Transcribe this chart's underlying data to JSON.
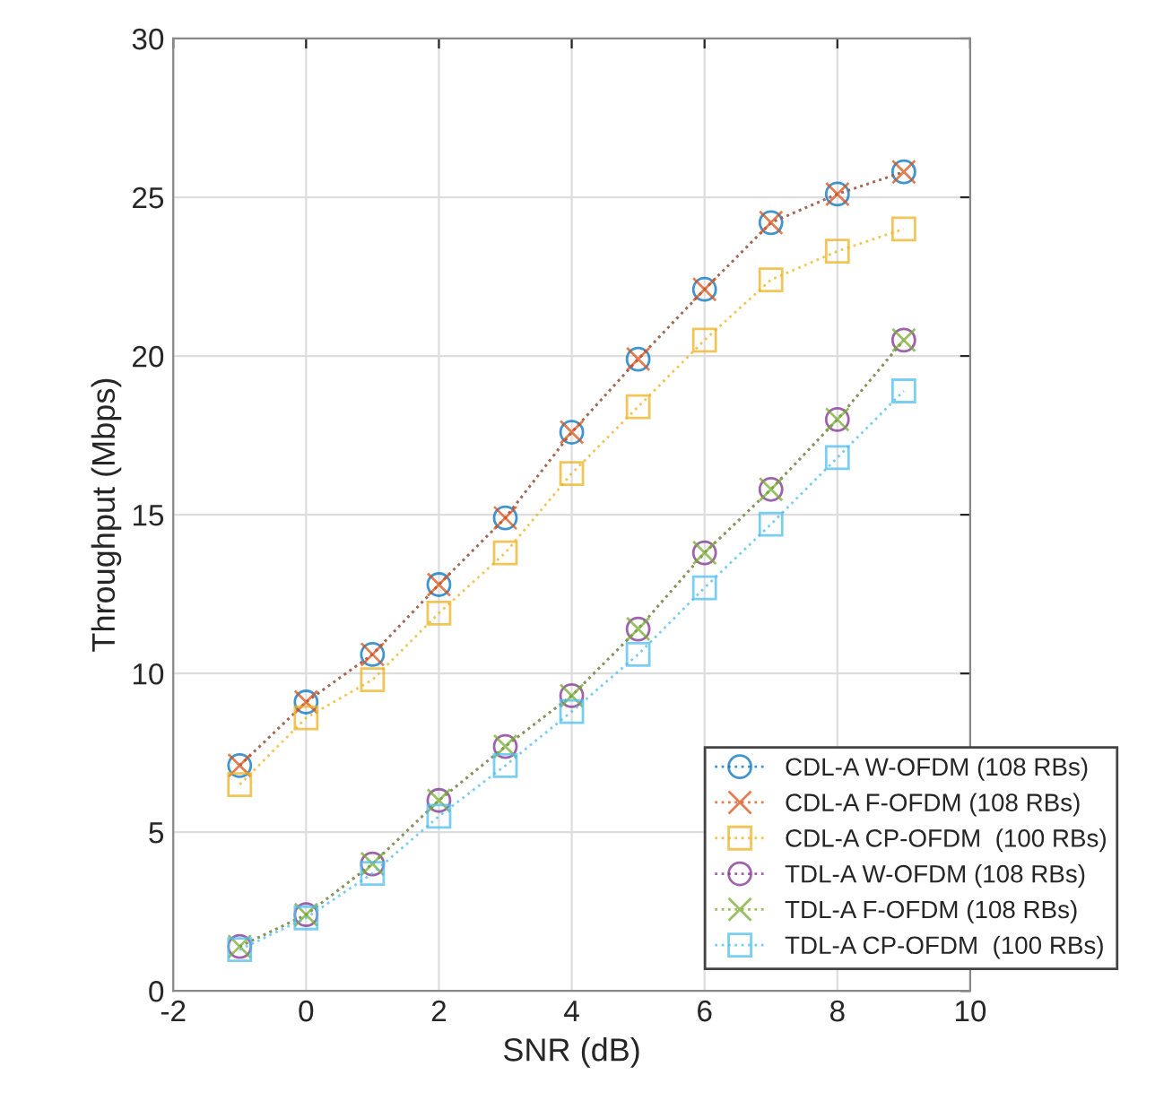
{
  "chart_data": {
    "type": "line",
    "xlabel": "SNR (dB)",
    "ylabel": "Throughput (Mbps)",
    "x": [
      -1,
      0,
      1,
      2,
      3,
      4,
      5,
      6,
      7,
      8,
      9
    ],
    "series": [
      {
        "name": "CDL-A W-OFDM (108 RBs)",
        "color": "#0072bd",
        "marker": "circle",
        "values": [
          7.1,
          9.1,
          10.6,
          12.8,
          14.9,
          17.6,
          19.9,
          22.1,
          24.2,
          25.1,
          25.8
        ]
      },
      {
        "name": "CDL-A F-OFDM (108 RBs)",
        "color": "#d95319",
        "marker": "cross",
        "values": [
          7.1,
          9.1,
          10.6,
          12.8,
          14.9,
          17.6,
          19.9,
          22.1,
          24.2,
          25.1,
          25.8
        ]
      },
      {
        "name": "CDL-A CP-OFDM  (100 RBs)",
        "color": "#edb120",
        "marker": "square",
        "values": [
          6.5,
          8.6,
          9.8,
          11.9,
          13.8,
          16.3,
          18.4,
          20.5,
          22.4,
          23.3,
          24.0
        ]
      },
      {
        "name": "TDL-A W-OFDM (108 RBs)",
        "color": "#7e2f8e",
        "marker": "circle",
        "values": [
          1.4,
          2.4,
          4.0,
          6.0,
          7.7,
          9.3,
          11.4,
          13.8,
          15.8,
          18.0,
          20.5
        ]
      },
      {
        "name": "TDL-A F-OFDM (108 RBs)",
        "color": "#77ac30",
        "marker": "cross",
        "values": [
          1.4,
          2.4,
          4.0,
          6.0,
          7.7,
          9.3,
          11.4,
          13.8,
          15.8,
          18.0,
          20.5
        ]
      },
      {
        "name": "TDL-A CP-OFDM  (100 RBs)",
        "color": "#4dbeee",
        "marker": "square",
        "values": [
          1.3,
          2.3,
          3.7,
          5.5,
          7.1,
          8.8,
          10.6,
          12.7,
          14.7,
          16.8,
          18.9
        ]
      }
    ],
    "xlim": [
      -2,
      10
    ],
    "xticks": [
      -2,
      0,
      2,
      4,
      6,
      8,
      10
    ],
    "ylim": [
      0,
      30
    ],
    "yticks": [
      0,
      5,
      10,
      15,
      20,
      25,
      30
    ],
    "grid": true,
    "legend": "bottom right",
    "line_style": "dotted"
  }
}
